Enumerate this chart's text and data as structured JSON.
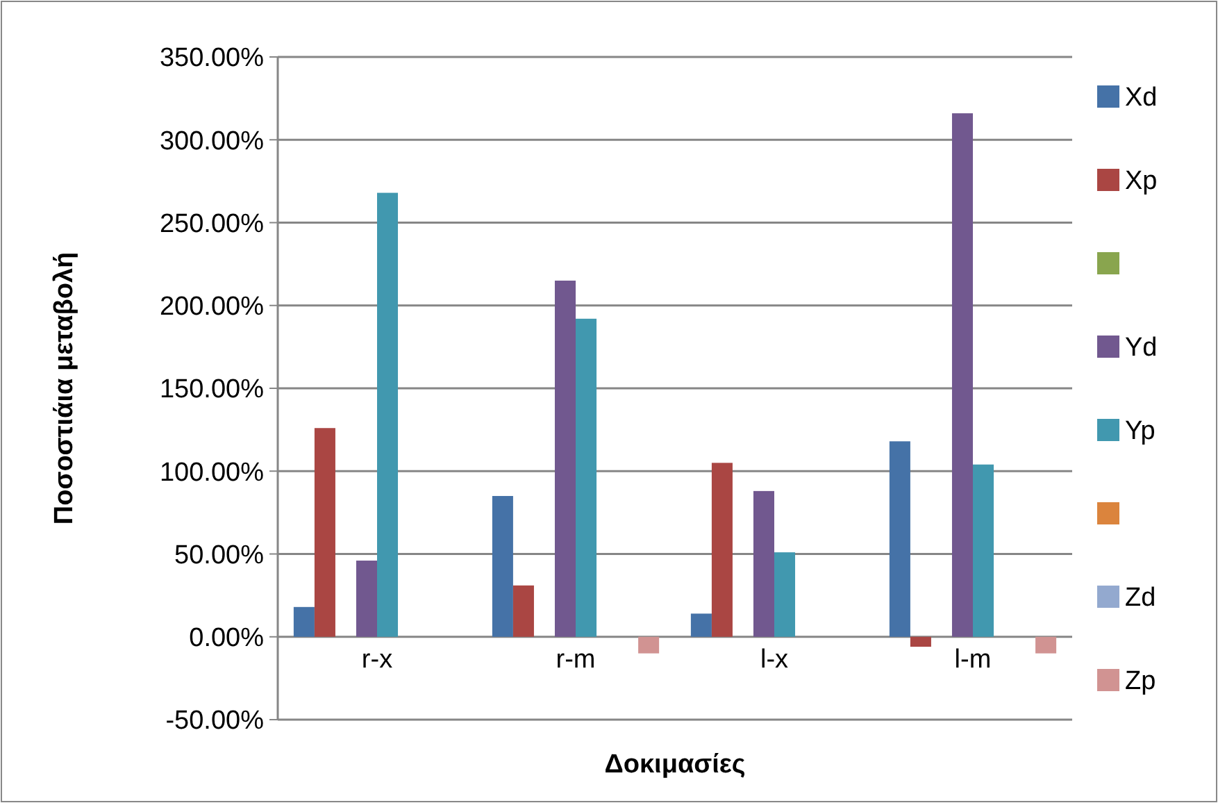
{
  "chart_data": {
    "type": "bar",
    "xlabel": "Δοκιμασίες",
    "ylabel": "Ποσοστιάια μεταβολή",
    "categories": [
      "r-x",
      "r-m",
      "l-x",
      "l-m"
    ],
    "series": [
      {
        "name": "Xd",
        "color": "#4572a7",
        "values": [
          18,
          85,
          14,
          118
        ]
      },
      {
        "name": "Xp",
        "color": "#aa4643",
        "values": [
          126,
          31,
          105,
          -6
        ]
      },
      {
        "color": "#89a54e",
        "values": [
          null,
          null,
          null,
          null
        ]
      },
      {
        "name": "Yd",
        "color": "#71588f",
        "values": [
          46,
          215,
          88,
          316
        ]
      },
      {
        "name": "Yp",
        "color": "#4198af",
        "values": [
          268,
          192,
          51,
          104
        ]
      },
      {
        "color": "#db843d",
        "values": [
          null,
          null,
          null,
          null
        ]
      },
      {
        "name": "Zd",
        "color": "#93a9cf",
        "values": [
          null,
          null,
          null,
          null
        ]
      },
      {
        "name": "Zp",
        "color": "#d19392",
        "values": [
          null,
          -10,
          null,
          -10
        ]
      }
    ],
    "ylim": [
      -50,
      350
    ],
    "yticks": [
      {
        "value": -50,
        "label": "-50.00%"
      },
      {
        "value": 0,
        "label": "0.00%"
      },
      {
        "value": 50,
        "label": "50.00%"
      },
      {
        "value": 100,
        "label": "100.00%"
      },
      {
        "value": 150,
        "label": "150.00%"
      },
      {
        "value": 200,
        "label": "200.00%"
      },
      {
        "value": 250,
        "label": "250.00%"
      },
      {
        "value": 300,
        "label": "300.00%"
      },
      {
        "value": 350,
        "label": "350.00%"
      }
    ],
    "grid": "y",
    "legend": "right"
  }
}
